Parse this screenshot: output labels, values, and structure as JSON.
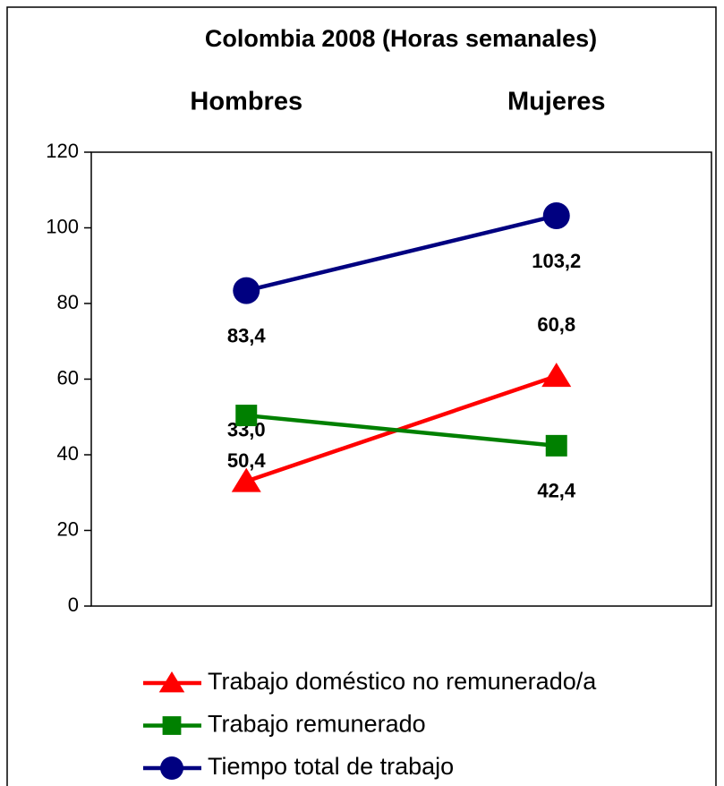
{
  "chart_data": {
    "type": "line",
    "title": "Colombia 2008 (Horas semanales)",
    "categories": [
      "Hombres",
      "Mujeres"
    ],
    "series": [
      {
        "name": "Trabajo doméstico no remunerado/a",
        "color": "#ff0000",
        "marker": "triangle",
        "values": [
          33.0,
          60.8
        ],
        "value_labels": [
          "33,0",
          "60,8"
        ]
      },
      {
        "name": "Trabajo remunerado",
        "color": "#008000",
        "marker": "square",
        "values": [
          50.4,
          42.4
        ],
        "value_labels": [
          "50,4",
          "42,4"
        ]
      },
      {
        "name": "Tiempo total de trabajo",
        "color": "#000080",
        "marker": "circle",
        "values": [
          83.4,
          103.2
        ],
        "value_labels": [
          "83,4",
          "103,2"
        ]
      }
    ],
    "ylim": [
      0,
      120
    ],
    "yticks": [
      0,
      20,
      40,
      60,
      80,
      100,
      120
    ],
    "grid": false,
    "legend": "bottom"
  }
}
